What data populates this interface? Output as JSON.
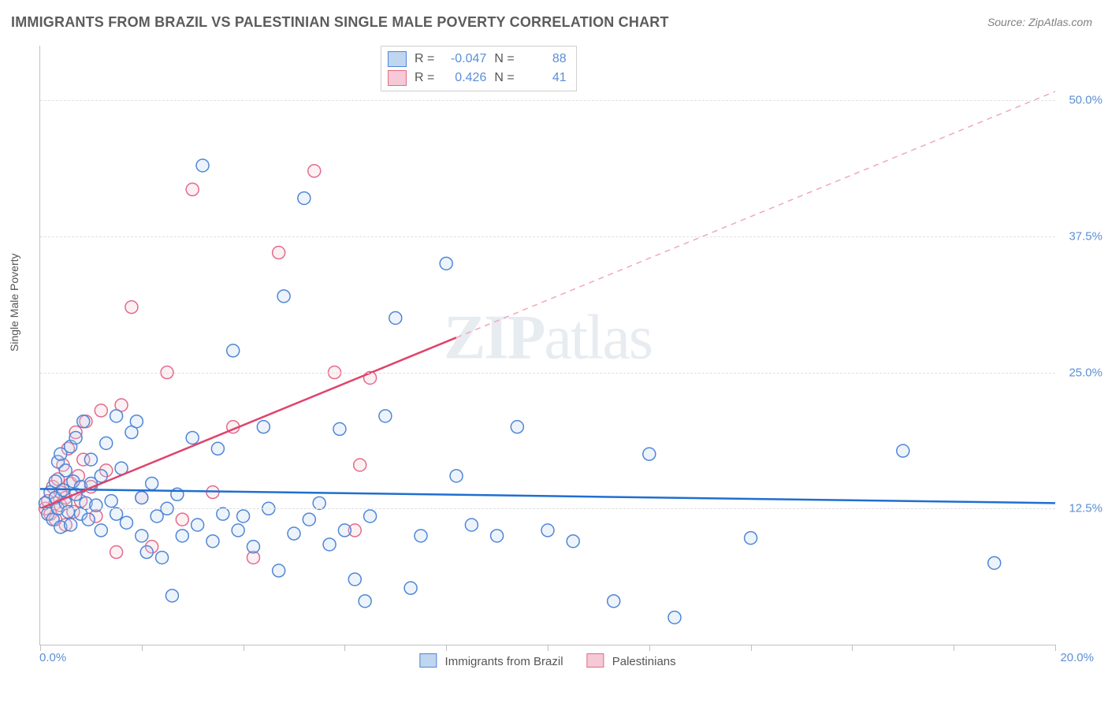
{
  "title": "IMMIGRANTS FROM BRAZIL VS PALESTINIAN SINGLE MALE POVERTY CORRELATION CHART",
  "source_label": "Source: ZipAtlas.com",
  "ylabel": "Single Male Poverty",
  "watermark": {
    "zip": "ZIP",
    "atlas": "atlas"
  },
  "chart": {
    "type": "scatter",
    "xlim": [
      0,
      20
    ],
    "ylim": [
      0,
      55
    ],
    "xtick_min_label": "0.0%",
    "xtick_max_label": "20.0%",
    "x_tick_positions": [
      0,
      2,
      4,
      6,
      8,
      10,
      12,
      14,
      16,
      18,
      20
    ],
    "y_gridlines": [
      12.5,
      25.0,
      37.5,
      50.0
    ],
    "y_gridline_labels": [
      "12.5%",
      "25.0%",
      "37.5%",
      "50.0%"
    ],
    "grid_color": "#e0e0e0",
    "axis_color": "#c0c0c0",
    "tick_label_color": "#5b8fd6",
    "background_color": "#ffffff",
    "marker_radius": 8,
    "marker_stroke_width": 1.5,
    "marker_fill_opacity": 0.28
  },
  "series": {
    "brazil": {
      "label": "Immigrants from Brazil",
      "stroke": "#4f86d6",
      "fill": "#bfd5f0",
      "R": "-0.047",
      "N": "88",
      "trend": {
        "x1": 0,
        "y1": 14.3,
        "x2": 20,
        "y2": 13.0,
        "stroke": "#1f6fd0",
        "width": 2.5,
        "dash": ""
      },
      "points": [
        [
          0.1,
          13.0
        ],
        [
          0.15,
          12.0
        ],
        [
          0.2,
          14.0
        ],
        [
          0.25,
          11.5
        ],
        [
          0.3,
          13.5
        ],
        [
          0.3,
          15.0
        ],
        [
          0.35,
          16.8
        ],
        [
          0.35,
          12.5
        ],
        [
          0.4,
          17.5
        ],
        [
          0.4,
          10.8
        ],
        [
          0.45,
          14.2
        ],
        [
          0.5,
          13.0
        ],
        [
          0.5,
          16.0
        ],
        [
          0.55,
          12.2
        ],
        [
          0.6,
          18.2
        ],
        [
          0.6,
          11.0
        ],
        [
          0.65,
          15.0
        ],
        [
          0.7,
          13.8
        ],
        [
          0.7,
          19.0
        ],
        [
          0.8,
          14.5
        ],
        [
          0.8,
          12.0
        ],
        [
          0.85,
          20.5
        ],
        [
          0.9,
          13.0
        ],
        [
          0.95,
          11.5
        ],
        [
          1.0,
          14.8
        ],
        [
          1.0,
          17.0
        ],
        [
          1.1,
          12.8
        ],
        [
          1.2,
          15.5
        ],
        [
          1.2,
          10.5
        ],
        [
          1.3,
          18.5
        ],
        [
          1.4,
          13.2
        ],
        [
          1.5,
          12.0
        ],
        [
          1.5,
          21.0
        ],
        [
          1.6,
          16.2
        ],
        [
          1.7,
          11.2
        ],
        [
          1.8,
          19.5
        ],
        [
          1.9,
          20.5
        ],
        [
          2.0,
          13.5
        ],
        [
          2.0,
          10.0
        ],
        [
          2.1,
          8.5
        ],
        [
          2.2,
          14.8
        ],
        [
          2.3,
          11.8
        ],
        [
          2.4,
          8.0
        ],
        [
          2.5,
          12.5
        ],
        [
          2.6,
          4.5
        ],
        [
          2.7,
          13.8
        ],
        [
          2.8,
          10.0
        ],
        [
          3.0,
          19.0
        ],
        [
          3.1,
          11.0
        ],
        [
          3.2,
          44.0
        ],
        [
          3.4,
          9.5
        ],
        [
          3.5,
          18.0
        ],
        [
          3.6,
          12.0
        ],
        [
          3.8,
          27.0
        ],
        [
          3.9,
          10.5
        ],
        [
          4.0,
          11.8
        ],
        [
          4.2,
          9.0
        ],
        [
          4.4,
          20.0
        ],
        [
          4.5,
          12.5
        ],
        [
          4.7,
          6.8
        ],
        [
          4.8,
          32.0
        ],
        [
          5.0,
          10.2
        ],
        [
          5.2,
          41.0
        ],
        [
          5.3,
          11.5
        ],
        [
          5.5,
          13.0
        ],
        [
          5.7,
          9.2
        ],
        [
          5.9,
          19.8
        ],
        [
          6.0,
          10.5
        ],
        [
          6.2,
          6.0
        ],
        [
          6.4,
          4.0
        ],
        [
          6.5,
          11.8
        ],
        [
          6.8,
          21.0
        ],
        [
          7.0,
          30.0
        ],
        [
          7.3,
          5.2
        ],
        [
          7.5,
          10.0
        ],
        [
          8.0,
          35.0
        ],
        [
          8.2,
          15.5
        ],
        [
          8.5,
          11.0
        ],
        [
          9.0,
          10.0
        ],
        [
          9.4,
          20.0
        ],
        [
          10.0,
          10.5
        ],
        [
          10.5,
          9.5
        ],
        [
          11.3,
          4.0
        ],
        [
          12.0,
          17.5
        ],
        [
          12.5,
          2.5
        ],
        [
          14.0,
          9.8
        ],
        [
          17.0,
          17.8
        ],
        [
          18.8,
          7.5
        ]
      ]
    },
    "palestinians": {
      "label": "Palestinians",
      "stroke": "#e36a8a",
      "fill": "#f5c9d5",
      "R": "0.426",
      "N": "41",
      "trend_solid": {
        "x1": 0,
        "y1": 12.5,
        "x2": 8.2,
        "y2": 28.2,
        "stroke": "#e0436b",
        "width": 2.5
      },
      "trend_dashed": {
        "x1": 8.2,
        "y1": 28.2,
        "x2": 20.0,
        "y2": 50.8,
        "stroke": "#f0a8ba",
        "width": 1.5,
        "dash": "7,6"
      },
      "points": [
        [
          0.1,
          12.5
        ],
        [
          0.15,
          13.2
        ],
        [
          0.2,
          12.0
        ],
        [
          0.25,
          14.5
        ],
        [
          0.3,
          13.0
        ],
        [
          0.3,
          11.5
        ],
        [
          0.35,
          15.2
        ],
        [
          0.4,
          12.8
        ],
        [
          0.4,
          14.0
        ],
        [
          0.45,
          16.5
        ],
        [
          0.5,
          13.5
        ],
        [
          0.5,
          11.0
        ],
        [
          0.55,
          18.0
        ],
        [
          0.6,
          14.8
        ],
        [
          0.65,
          12.2
        ],
        [
          0.7,
          19.5
        ],
        [
          0.75,
          15.5
        ],
        [
          0.8,
          13.2
        ],
        [
          0.85,
          17.0
        ],
        [
          0.9,
          20.5
        ],
        [
          1.0,
          14.5
        ],
        [
          1.1,
          11.8
        ],
        [
          1.2,
          21.5
        ],
        [
          1.3,
          16.0
        ],
        [
          1.5,
          8.5
        ],
        [
          1.6,
          22.0
        ],
        [
          1.8,
          31.0
        ],
        [
          2.0,
          13.5
        ],
        [
          2.2,
          9.0
        ],
        [
          2.5,
          25.0
        ],
        [
          2.8,
          11.5
        ],
        [
          3.0,
          41.8
        ],
        [
          3.4,
          14.0
        ],
        [
          3.8,
          20.0
        ],
        [
          4.2,
          8.0
        ],
        [
          4.7,
          36.0
        ],
        [
          5.4,
          43.5
        ],
        [
          5.8,
          25.0
        ],
        [
          6.2,
          10.5
        ],
        [
          6.3,
          16.5
        ],
        [
          6.5,
          24.5
        ]
      ]
    }
  },
  "top_legend": {
    "rows": [
      {
        "swatch_stroke": "#4f86d6",
        "swatch_fill": "#bfd5f0",
        "r_label": "R =",
        "r_val": "-0.047",
        "n_label": "N =",
        "n_val": "88"
      },
      {
        "swatch_stroke": "#e36a8a",
        "swatch_fill": "#f5c9d5",
        "r_label": "R =",
        "r_val": "0.426",
        "n_label": "N =",
        "n_val": "41"
      }
    ]
  }
}
